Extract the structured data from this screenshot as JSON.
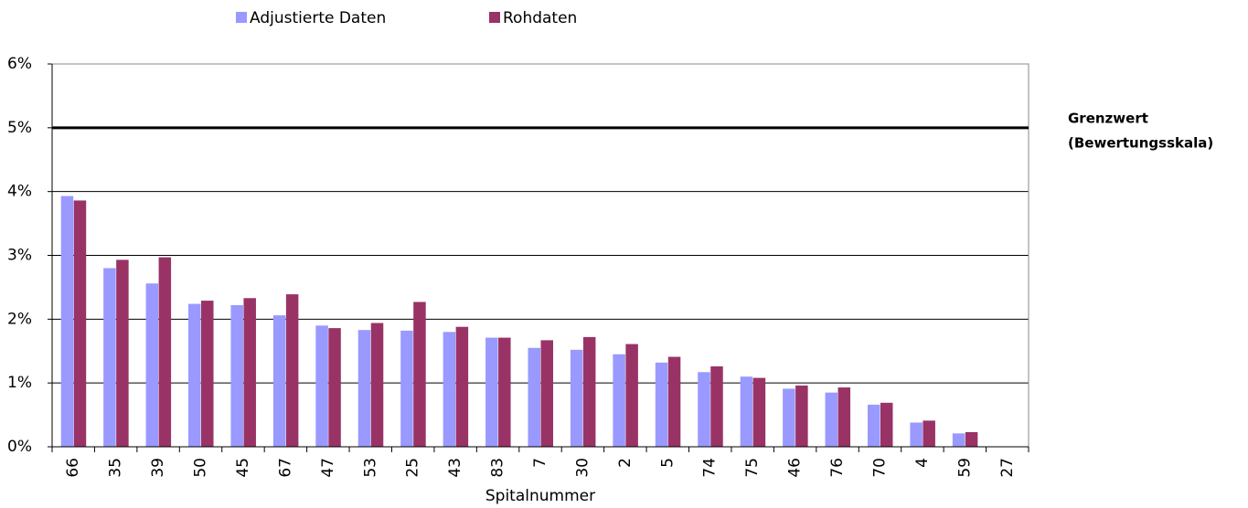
{
  "chart_data": {
    "type": "bar",
    "x_label": "Spitalnummer",
    "categories": [
      "66",
      "35",
      "39",
      "50",
      "45",
      "67",
      "47",
      "53",
      "25",
      "43",
      "83",
      "7",
      "30",
      "2",
      "5",
      "74",
      "75",
      "46",
      "76",
      "70",
      "4",
      "59",
      "27"
    ],
    "series": [
      {
        "name": "Adjustierte Daten",
        "color": "#9999ff",
        "values": [
          3.93,
          2.8,
          2.56,
          2.24,
          2.22,
          2.06,
          1.9,
          1.83,
          1.82,
          1.8,
          1.71,
          1.55,
          1.52,
          1.45,
          1.32,
          1.17,
          1.1,
          0.91,
          0.85,
          0.66,
          0.38,
          0.21,
          0
        ]
      },
      {
        "name": "Rohdaten",
        "color": "#993366",
        "values": [
          3.86,
          2.93,
          2.97,
          2.29,
          2.33,
          2.39,
          1.86,
          1.94,
          2.27,
          1.88,
          1.71,
          1.67,
          1.72,
          1.61,
          1.41,
          1.26,
          1.08,
          0.96,
          0.93,
          0.69,
          0.41,
          0.23,
          0
        ]
      }
    ],
    "ylim": [
      0,
      6
    ],
    "yticks": [
      {
        "value": 0,
        "label": "0%"
      },
      {
        "value": 1,
        "label": "1%"
      },
      {
        "value": 2,
        "label": "2%"
      },
      {
        "value": 3,
        "label": "3%"
      },
      {
        "value": 4,
        "label": "4%"
      },
      {
        "value": 5,
        "label": "5%"
      },
      {
        "value": 6,
        "label": "6%"
      }
    ],
    "grid": true,
    "legend": "top",
    "threshold": {
      "value": 5,
      "label_lines": [
        "Grenzwert",
        "(Bewertungsskala)"
      ]
    }
  }
}
